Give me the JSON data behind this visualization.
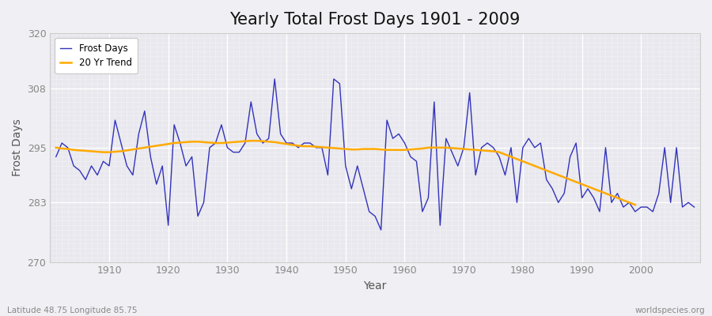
{
  "title": "Yearly Total Frost Days 1901 - 2009",
  "xlabel": "Year",
  "ylabel": "Frost Days",
  "footnote_left": "Latitude 48.75 Longitude 85.75",
  "footnote_right": "worldspecies.org",
  "ylim": [
    270,
    320
  ],
  "yticks": [
    270,
    283,
    295,
    308,
    320
  ],
  "start_year": 1901,
  "end_year": 2009,
  "frost_days": [
    293,
    296,
    295,
    291,
    290,
    288,
    291,
    289,
    292,
    291,
    301,
    296,
    291,
    289,
    298,
    303,
    293,
    287,
    291,
    278,
    300,
    296,
    291,
    293,
    280,
    283,
    295,
    296,
    300,
    295,
    294,
    294,
    296,
    305,
    298,
    296,
    297,
    310,
    298,
    296,
    296,
    295,
    296,
    296,
    295,
    295,
    289,
    310,
    309,
    291,
    286,
    291,
    286,
    281,
    280,
    277,
    301,
    297,
    298,
    296,
    293,
    292,
    281,
    284,
    305,
    278,
    297,
    294,
    291,
    295,
    307,
    289,
    295,
    296,
    295,
    293,
    289,
    295,
    283,
    295,
    297,
    295,
    296,
    288,
    286,
    283,
    285,
    293,
    296,
    284,
    286,
    284,
    281,
    295,
    283,
    285,
    282,
    283,
    281,
    282,
    282,
    281,
    285,
    295,
    283,
    295,
    282,
    283,
    282
  ],
  "trend_20yr": [
    295.0,
    294.8,
    294.7,
    294.5,
    294.4,
    294.3,
    294.2,
    294.1,
    294.0,
    294.0,
    294.1,
    294.2,
    294.4,
    294.6,
    294.8,
    295.0,
    295.2,
    295.4,
    295.6,
    295.8,
    296.0,
    296.1,
    296.2,
    296.3,
    296.3,
    296.2,
    296.1,
    296.0,
    296.0,
    296.1,
    296.2,
    296.3,
    296.4,
    296.5,
    296.5,
    296.4,
    296.3,
    296.2,
    296.0,
    295.8,
    295.6,
    295.4,
    295.3,
    295.3,
    295.2,
    295.1,
    295.0,
    294.9,
    294.8,
    294.7,
    294.6,
    294.6,
    294.7,
    294.7,
    294.7,
    294.6,
    294.5,
    294.5,
    294.5,
    294.5,
    294.6,
    294.7,
    294.8,
    295.0,
    295.0,
    295.0,
    295.0,
    294.9,
    294.8,
    294.7,
    294.6,
    294.5,
    294.4,
    294.3,
    294.2,
    294.0,
    293.5,
    293.0,
    292.5,
    292.0,
    291.5,
    291.0,
    290.5,
    290.0,
    289.5,
    289.0,
    288.5,
    288.0,
    287.5,
    287.0,
    286.5,
    286.0,
    285.5,
    285.0,
    284.5,
    284.0,
    283.5,
    283.0,
    282.5
  ],
  "frost_color": "#3333bb",
  "trend_color": "#ffaa00",
  "bg_color": "#f0f0f4",
  "plot_bg_color": "#e8e8ee",
  "grid_color": "#ffffff",
  "title_fontsize": 15,
  "label_fontsize": 10,
  "tick_fontsize": 9,
  "tick_color": "#888888"
}
